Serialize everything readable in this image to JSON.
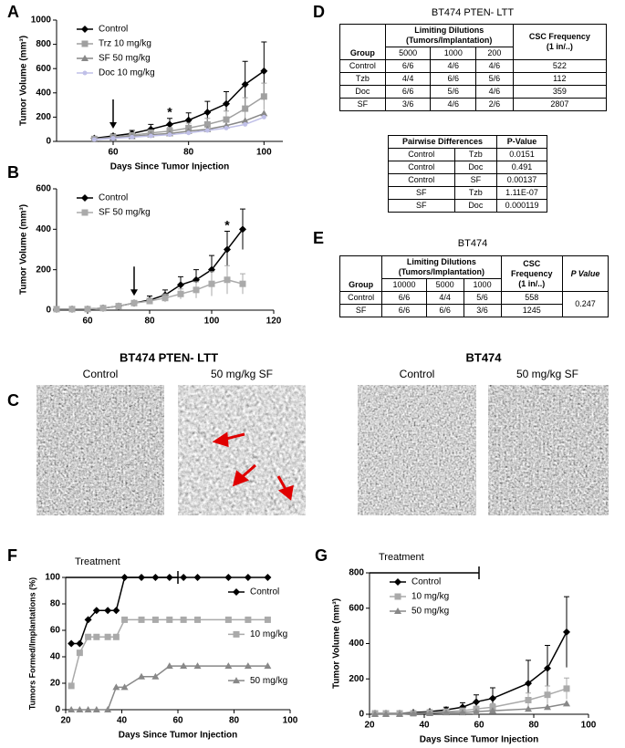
{
  "panel_labels": [
    "A",
    "B",
    "C",
    "D",
    "E",
    "F",
    "G"
  ],
  "chart_data": [
    {
      "type": "line",
      "xlabel": "Days Since Tumor Injection",
      "ylabel": "Tumor Volume (mm³)",
      "x": [
        55,
        60,
        65,
        70,
        75,
        80,
        85,
        90,
        95,
        100
      ],
      "xlim": [
        45,
        105
      ],
      "ylim": [
        0,
        1000
      ],
      "xticks": [
        60,
        80,
        100
      ],
      "yticks": [
        0,
        200,
        400,
        600,
        800,
        1000
      ],
      "legend": "upper left",
      "treatment_day": 60,
      "annotation": {
        "text": "*",
        "x": 75
      },
      "series": [
        {
          "name": "Control",
          "color": "#000000",
          "marker": "diamond",
          "values": [
            25,
            45,
            65,
            100,
            140,
            175,
            240,
            310,
            470,
            580
          ],
          "errors": [
            10,
            15,
            25,
            40,
            50,
            60,
            90,
            100,
            190,
            240
          ]
        },
        {
          "name": "Trz 10 mg/kg",
          "color": "#a0a0a0",
          "marker": "square",
          "values": [
            20,
            35,
            50,
            70,
            85,
            110,
            140,
            180,
            270,
            370
          ],
          "errors": [
            10,
            10,
            20,
            25,
            30,
            40,
            50,
            70,
            90,
            110
          ]
        },
        {
          "name": "SF 50 mg/kg",
          "color": "#888888",
          "marker": "triangle",
          "values": [
            15,
            30,
            40,
            55,
            65,
            85,
            100,
            130,
            170,
            230
          ]
        },
        {
          "name": "Doc 10 mg/kg",
          "color": "#c0c0e8",
          "marker": "circle",
          "values": [
            15,
            25,
            35,
            45,
            55,
            70,
            90,
            110,
            140,
            200
          ]
        }
      ]
    },
    {
      "type": "line",
      "ylabel": "Tumor Volume (mm³)",
      "x": [
        50,
        55,
        60,
        65,
        70,
        75,
        80,
        85,
        90,
        95,
        100,
        105,
        110
      ],
      "xlim": [
        50,
        120
      ],
      "ylim": [
        0,
        600
      ],
      "xticks": [
        60,
        80,
        100,
        120
      ],
      "yticks": [
        0,
        200,
        400,
        600
      ],
      "legend": "upper left",
      "treatment_day": 75,
      "annotation": {
        "text": "*",
        "x": 105
      },
      "series": [
        {
          "name": "Control",
          "color": "#000000",
          "marker": "diamond",
          "values": [
            5,
            5,
            5,
            10,
            20,
            35,
            50,
            75,
            125,
            150,
            200,
            300,
            400
          ],
          "errors": [
            2,
            2,
            3,
            5,
            8,
            10,
            20,
            25,
            40,
            50,
            70,
            90,
            100
          ]
        },
        {
          "name": "SF 50 mg/kg",
          "color": "#aaaaaa",
          "marker": "square",
          "values": [
            5,
            5,
            5,
            10,
            20,
            35,
            45,
            60,
            80,
            100,
            130,
            150,
            130
          ],
          "errors": [
            2,
            2,
            3,
            5,
            8,
            10,
            15,
            20,
            25,
            40,
            60,
            70,
            50
          ]
        }
      ]
    },
    {
      "type": "line",
      "xlabel": "Days Since Tumor Injection",
      "ylabel": "Tumors Formed/Implantations (%)",
      "x": [
        22,
        25,
        28,
        31,
        35,
        38,
        41,
        47,
        52,
        57,
        62,
        67,
        78,
        85,
        92
      ],
      "xlim": [
        20,
        100
      ],
      "ylim": [
        0,
        100
      ],
      "xticks": [
        20,
        40,
        60,
        80,
        100
      ],
      "yticks": [
        0,
        20,
        40,
        60,
        80,
        100
      ],
      "legend": "inline",
      "treatment": {
        "label": "Treatment",
        "range": [
          20,
          60
        ]
      },
      "series": [
        {
          "name": "Control",
          "color": "#000000",
          "marker": "diamond",
          "values": [
            50,
            50,
            68,
            75,
            75,
            75,
            100,
            100,
            100,
            100,
            100,
            100,
            100,
            100,
            100
          ]
        },
        {
          "name": "10 mg/kg",
          "color": "#aaaaaa",
          "marker": "square",
          "values": [
            18,
            43,
            55,
            55,
            55,
            55,
            68,
            68,
            68,
            68,
            68,
            68,
            68,
            68,
            68
          ]
        },
        {
          "name": "50 mg/kg",
          "color": "#888888",
          "marker": "triangle",
          "values": [
            0,
            0,
            0,
            0,
            0,
            17,
            17,
            25,
            25,
            33,
            33,
            33,
            33,
            33,
            33
          ]
        }
      ]
    },
    {
      "type": "line",
      "xlabel": "Days Since Tumor Injection",
      "ylabel": "Tumor Volume (mm³)",
      "x": [
        22,
        26,
        31,
        36,
        42,
        48,
        54,
        59,
        65,
        78,
        85,
        92
      ],
      "xlim": [
        20,
        100
      ],
      "ylim": [
        0,
        800
      ],
      "xticks": [
        20,
        40,
        60,
        80,
        100
      ],
      "yticks": [
        0,
        200,
        400,
        600,
        800
      ],
      "legend": "upper left",
      "treatment": {
        "label": "Treatment",
        "range": [
          20,
          60
        ]
      },
      "series": [
        {
          "name": "Control",
          "color": "#000000",
          "marker": "diamond",
          "values": [
            5,
            5,
            5,
            10,
            15,
            25,
            40,
            70,
            90,
            175,
            260,
            465
          ],
          "errors": [
            2,
            2,
            3,
            5,
            10,
            15,
            25,
            40,
            60,
            130,
            130,
            200
          ]
        },
        {
          "name": "10 mg/kg",
          "color": "#aaaaaa",
          "marker": "square",
          "values": [
            5,
            5,
            5,
            5,
            10,
            15,
            20,
            30,
            40,
            80,
            110,
            145
          ],
          "errors": [
            2,
            2,
            2,
            3,
            5,
            8,
            10,
            15,
            20,
            40,
            50,
            60
          ]
        },
        {
          "name": "50 mg/kg",
          "color": "#888888",
          "marker": "triangle",
          "values": [
            0,
            0,
            0,
            5,
            5,
            10,
            10,
            15,
            20,
            30,
            40,
            60
          ]
        }
      ]
    }
  ],
  "table_d": {
    "title": "BT474 PTEN- LTT",
    "group_header": "Group",
    "dilution_header": [
      "Limiting Dilutions",
      "(Tumors/Implantation)"
    ],
    "frequency_header": [
      "CSC Frequency",
      "(1 in/..)"
    ],
    "doses": [
      "5000",
      "1000",
      "200"
    ],
    "rows": [
      [
        "Control",
        "6/6",
        "4/6",
        "4/6",
        "522"
      ],
      [
        "Tzb",
        "4/4",
        "6/6",
        "5/6",
        "112"
      ],
      [
        "Doc",
        "6/6",
        "5/6",
        "4/6",
        "359"
      ],
      [
        "SF",
        "3/6",
        "4/6",
        "2/6",
        "2807"
      ]
    ]
  },
  "pairwise": {
    "headers": [
      "Pairwise Differences",
      "P-Value"
    ],
    "rows": [
      [
        "Control",
        "Tzb",
        "0.0151"
      ],
      [
        "Control",
        "Doc",
        "0.491"
      ],
      [
        "Control",
        "SF",
        "0.00137"
      ],
      [
        "SF",
        "Tzb",
        "1.11E-07"
      ],
      [
        "SF",
        "Doc",
        "0.000119"
      ]
    ]
  },
  "table_e": {
    "title": "BT474",
    "group_header": "Group",
    "dilution_header": [
      "Limiting Dilutions",
      "(Tumors/Implantation)"
    ],
    "frequency_header": [
      "CSC",
      "Frequency",
      "(1 in/..)"
    ],
    "pvalue_header": "P Value",
    "doses": [
      "10000",
      "5000",
      "1000"
    ],
    "rows": [
      [
        "Control",
        "6/6",
        "4/4",
        "5/6",
        "558"
      ],
      [
        "SF",
        "6/6",
        "6/6",
        "3/6",
        "1245"
      ]
    ],
    "pvalue": "0.247"
  },
  "images": {
    "left_title": "BT474 PTEN- LTT",
    "right_title": "BT474",
    "labels": [
      "Control",
      "50 mg/kg SF",
      "Control",
      "50 mg/kg SF"
    ]
  }
}
